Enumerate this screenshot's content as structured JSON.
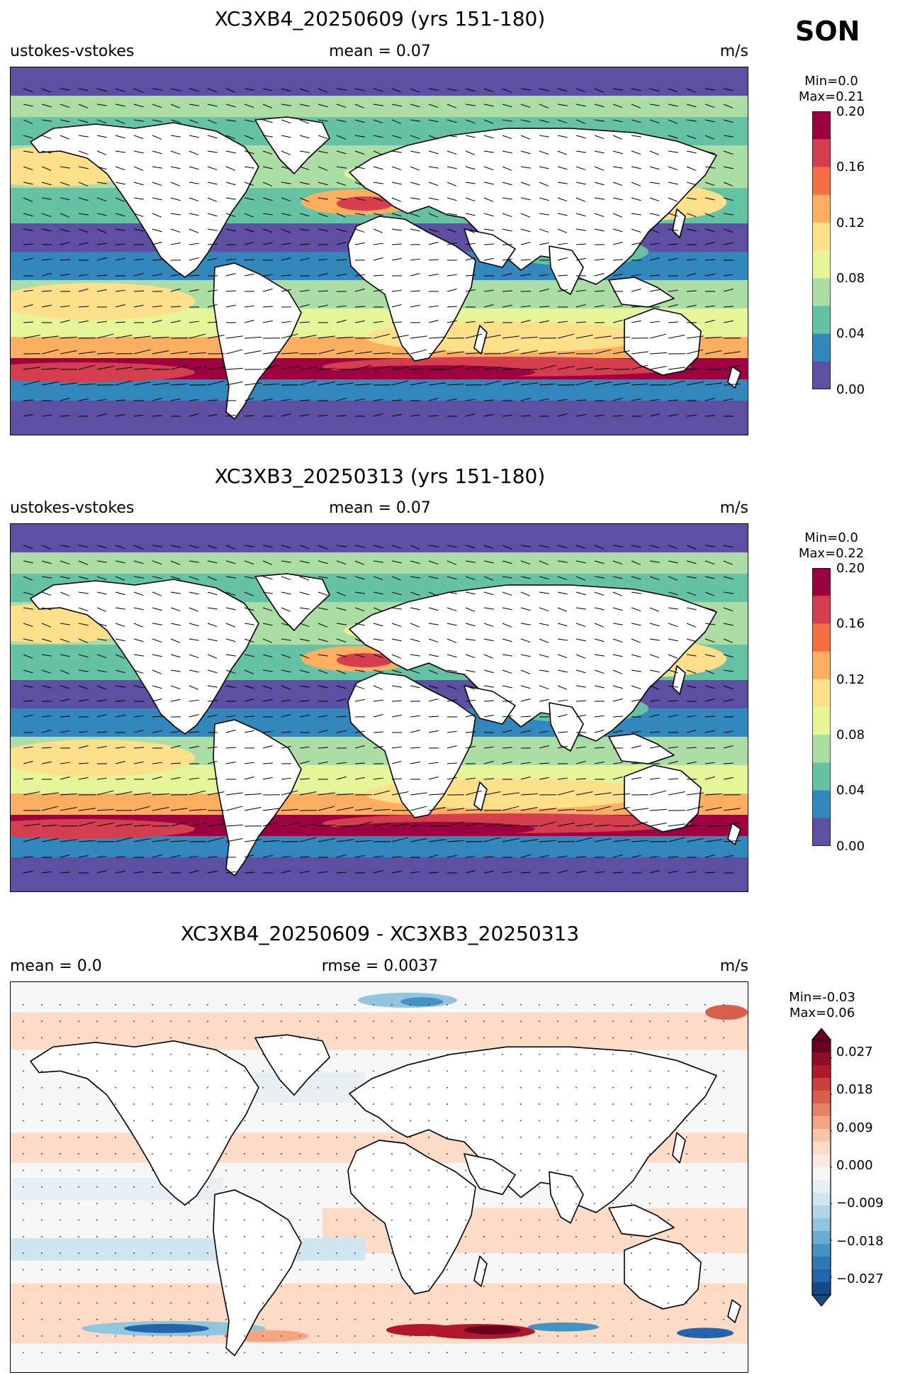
{
  "season": "SON",
  "panels": [
    {
      "id": "top",
      "title": "XC3XB4_20250609 (yrs 151-180)",
      "left_label": "ustokes-vstokes",
      "center_label": "mean = 0.07",
      "right_label": "m/s",
      "min_label": "Min=0.0",
      "max_label": "Max=0.21",
      "colorbar": {
        "ticks": [
          "0.20",
          "0.16",
          "0.12",
          "0.08",
          "0.04",
          "0.00"
        ],
        "colors": [
          "#9e0142",
          "#d53e4f",
          "#f46d43",
          "#fdae61",
          "#fee08b",
          "#e6f598",
          "#abdda4",
          "#66c2a5",
          "#3288bd",
          "#5e4fa2"
        ]
      }
    },
    {
      "id": "middle",
      "title": "XC3XB3_20250313 (yrs 151-180)",
      "left_label": "ustokes-vstokes",
      "center_label": "mean = 0.07",
      "right_label": "m/s",
      "min_label": "Min=0.0",
      "max_label": "Max=0.22",
      "colorbar": {
        "ticks": [
          "0.20",
          "0.16",
          "0.12",
          "0.08",
          "0.04",
          "0.00"
        ],
        "colors": [
          "#9e0142",
          "#d53e4f",
          "#f46d43",
          "#fdae61",
          "#fee08b",
          "#e6f598",
          "#abdda4",
          "#66c2a5",
          "#3288bd",
          "#5e4fa2"
        ]
      }
    },
    {
      "id": "bottom",
      "title": "XC3XB4_20250609 - XC3XB3_20250313",
      "left_label": "mean = 0.0",
      "center_label": "rmse = 0.0037",
      "right_label": "m/s",
      "min_label": "Min=-0.03",
      "max_label": "Max=0.06",
      "colorbar": {
        "ticks": [
          "0.027",
          "0.018",
          "0.009",
          "0.000",
          "−0.009",
          "−0.018",
          "−0.027"
        ],
        "colors": [
          "#67001f",
          "#8f0d27",
          "#b2182b",
          "#c93f3e",
          "#d6604d",
          "#e58267",
          "#f4a582",
          "#f8c4a9",
          "#fddbc7",
          "#fbe9df",
          "#f7f7f7",
          "#e8f0f5",
          "#d1e5f0",
          "#b3d5e8",
          "#92c5de",
          "#6aacd0",
          "#4393c3",
          "#2f79b5",
          "#2166ac",
          "#134b87"
        ]
      }
    }
  ]
}
